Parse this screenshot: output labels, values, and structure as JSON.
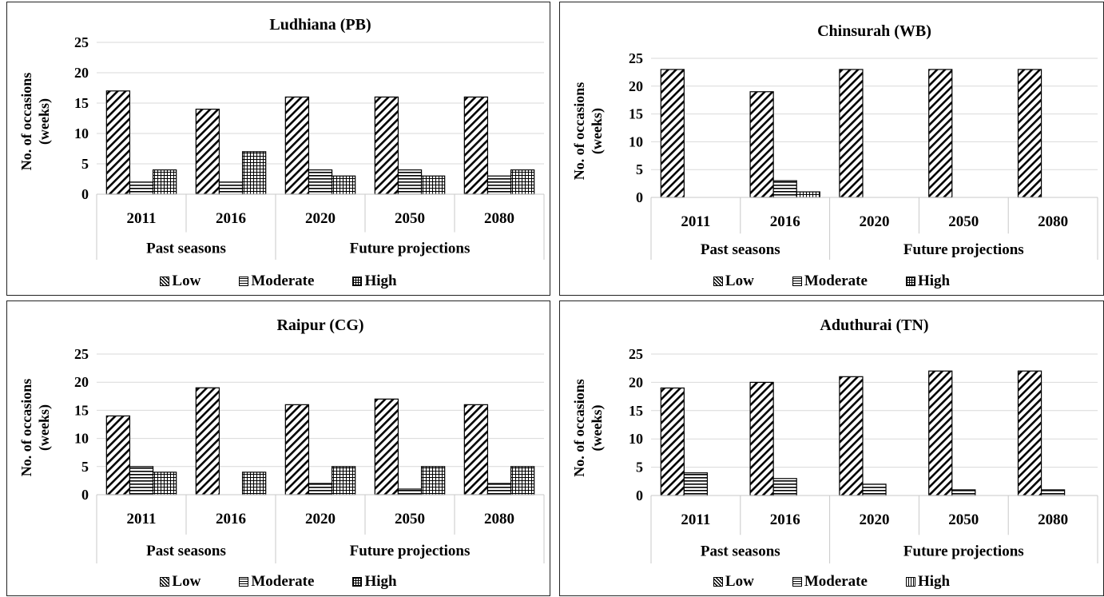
{
  "chart_data": [
    {
      "type": "bar",
      "title": "Ludhiana  (PB)",
      "ylabel_lines": [
        "No. of occasions",
        "(weeks)"
      ],
      "categories": [
        "2011",
        "2016",
        "2020",
        "2050",
        "2080"
      ],
      "groups": [
        {
          "label": "Past seasons",
          "categories": [
            "2011",
            "2016"
          ]
        },
        {
          "label": "Future projections",
          "categories": [
            "2020",
            "2050",
            "2080"
          ]
        }
      ],
      "ylim": [
        0,
        25
      ],
      "yticks": [
        "0",
        "5",
        "10",
        "15",
        "20",
        "25"
      ],
      "grid": true,
      "legend": "bottom",
      "series": [
        {
          "name": "Low",
          "pattern": "diagonal",
          "values": [
            17,
            14,
            16,
            16,
            16
          ]
        },
        {
          "name": "Moderate",
          "pattern": "horizontal",
          "values": [
            2,
            2,
            4,
            4,
            3
          ]
        },
        {
          "name": "High",
          "pattern": "grid",
          "values": [
            4,
            7,
            3,
            3,
            4
          ]
        }
      ]
    },
    {
      "type": "bar",
      "title": "Chinsurah  (WB)",
      "ylabel_lines": [
        "No. of occasions",
        "(weeks)"
      ],
      "categories": [
        "2011",
        "2016",
        "2020",
        "2050",
        "2080"
      ],
      "groups": [
        {
          "label": "Past seasons",
          "categories": [
            "2011",
            "2016"
          ]
        },
        {
          "label": "Future projections",
          "categories": [
            "2020",
            "2050",
            "2080"
          ]
        }
      ],
      "ylim": [
        0,
        25
      ],
      "yticks": [
        "0",
        "5",
        "10",
        "15",
        "20",
        "25"
      ],
      "grid": true,
      "legend": "bottom",
      "series": [
        {
          "name": "Low",
          "pattern": "diagonal",
          "values": [
            23,
            19,
            23,
            23,
            23
          ]
        },
        {
          "name": "Moderate",
          "pattern": "horizontal",
          "values": [
            0,
            3,
            0,
            0,
            0
          ]
        },
        {
          "name": "High",
          "pattern": "grid",
          "values": [
            0,
            1,
            0,
            0,
            0
          ]
        }
      ]
    },
    {
      "type": "bar",
      "title": "Raipur  (CG)",
      "ylabel_lines": [
        "No. of occasions",
        "(weeks)"
      ],
      "categories": [
        "2011",
        "2016",
        "2020",
        "2050",
        "2080"
      ],
      "groups": [
        {
          "label": "Past seasons",
          "categories": [
            "2011",
            "2016"
          ]
        },
        {
          "label": "Future projections",
          "categories": [
            "2020",
            "2050",
            "2080"
          ]
        }
      ],
      "ylim": [
        0,
        25
      ],
      "yticks": [
        "0",
        "5",
        "10",
        "15",
        "20",
        "25"
      ],
      "grid": true,
      "legend": "bottom",
      "series": [
        {
          "name": "Low",
          "pattern": "diagonal",
          "values": [
            14,
            19,
            16,
            17,
            16
          ]
        },
        {
          "name": "Moderate",
          "pattern": "horizontal",
          "values": [
            5,
            0,
            2,
            1,
            2
          ]
        },
        {
          "name": "High",
          "pattern": "grid",
          "values": [
            4,
            4,
            5,
            5,
            5
          ]
        }
      ]
    },
    {
      "type": "bar",
      "title": "Aduthurai  (TN)",
      "ylabel_lines": [
        "No. of occasions",
        "(weeks)"
      ],
      "categories": [
        "2011",
        "2016",
        "2020",
        "2050",
        "2080"
      ],
      "groups": [
        {
          "label": "Past seasons",
          "categories": [
            "2011",
            "2016"
          ]
        },
        {
          "label": "Future projections",
          "categories": [
            "2020",
            "2050",
            "2080"
          ]
        }
      ],
      "ylim": [
        0,
        25
      ],
      "yticks": [
        "0",
        "5",
        "10",
        "15",
        "20",
        "25"
      ],
      "grid": true,
      "legend": "bottom",
      "series": [
        {
          "name": "Low",
          "pattern": "diagonal",
          "values": [
            19,
            20,
            21,
            22,
            22
          ]
        },
        {
          "name": "Moderate",
          "pattern": "horizontal",
          "values": [
            4,
            3,
            2,
            1,
            1
          ]
        },
        {
          "name": "High",
          "pattern": "vertical",
          "values": [
            0,
            0,
            0,
            0,
            0
          ]
        }
      ]
    }
  ]
}
